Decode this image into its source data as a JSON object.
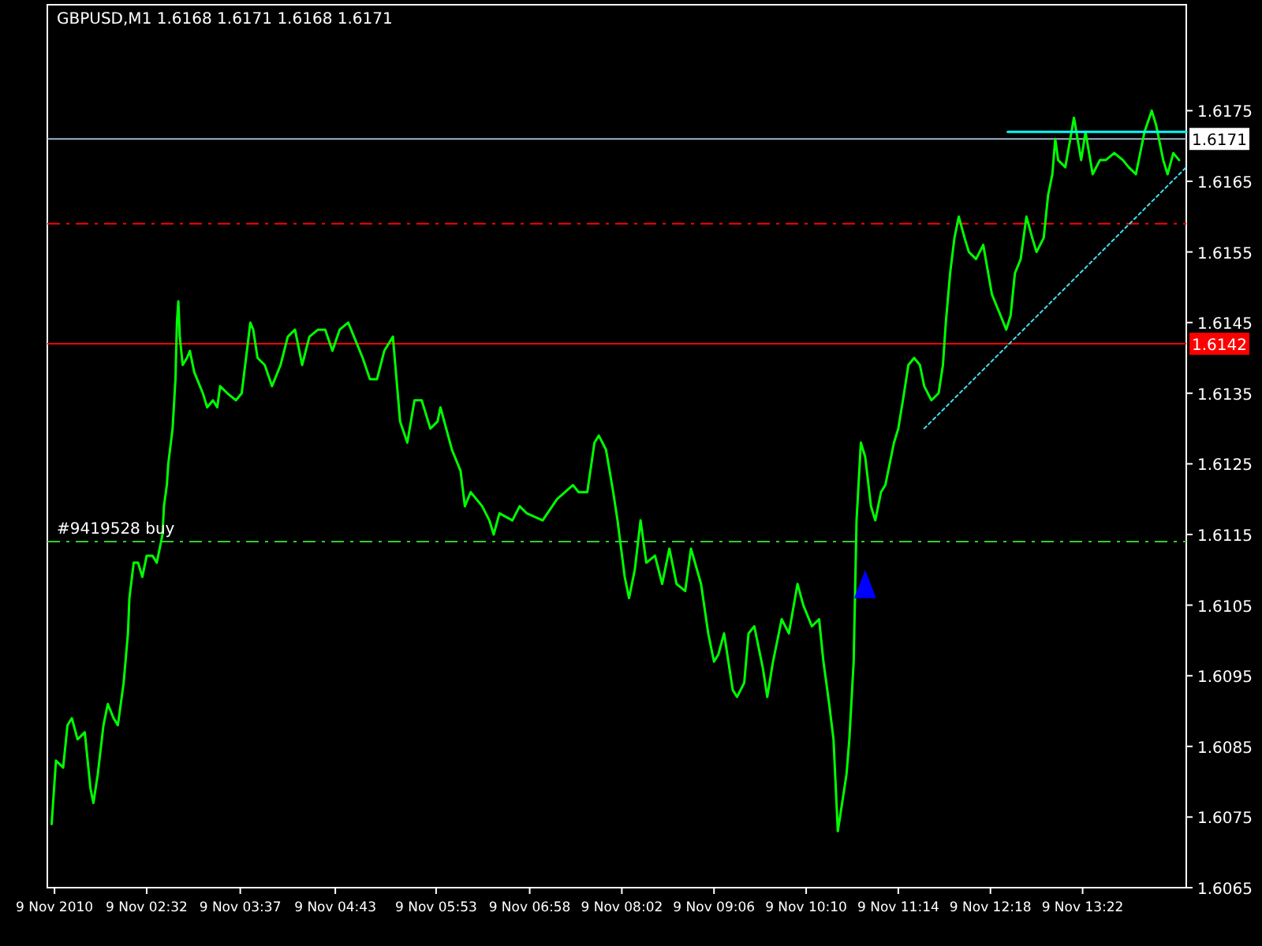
{
  "chart_data": {
    "type": "line",
    "title": "GBPUSD,M1  1.6168 1.6171 1.6168 1.6171",
    "xlim": [
      "2010-11-09T01:23",
      "2010-11-09T14:34"
    ],
    "ylim": [
      1.6065,
      1.619
    ],
    "xticks": [
      {
        "value": "2010-11-09T01:28",
        "label": "9 Nov 2010"
      },
      {
        "value": "2010-11-09T02:32",
        "label": "9 Nov 02:32"
      },
      {
        "value": "2010-11-09T03:37",
        "label": "9 Nov 03:37"
      },
      {
        "value": "2010-11-09T04:43",
        "label": "9 Nov 04:43"
      },
      {
        "value": "2010-11-09T05:53",
        "label": "9 Nov 05:53"
      },
      {
        "value": "2010-11-09T06:58",
        "label": "9 Nov 06:58"
      },
      {
        "value": "2010-11-09T08:02",
        "label": "9 Nov 08:02"
      },
      {
        "value": "2010-11-09T09:06",
        "label": "9 Nov 09:06"
      },
      {
        "value": "2010-11-09T10:10",
        "label": "9 Nov 10:10"
      },
      {
        "value": "2010-11-09T11:14",
        "label": "9 Nov 11:14"
      },
      {
        "value": "2010-11-09T12:18",
        "label": "9 Nov 12:18"
      },
      {
        "value": "2010-11-09T13:22",
        "label": "9 Nov 13:22"
      }
    ],
    "yticks": [
      1.6065,
      1.6075,
      1.6085,
      1.6095,
      1.6105,
      1.6115,
      1.6125,
      1.6135,
      1.6145,
      1.6155,
      1.6165,
      1.6175
    ],
    "grid": false,
    "series": [
      {
        "color": "#00ff00",
        "line_style": "solid",
        "x": [
          "2010-11-09T01:26",
          "2010-11-09T01:29",
          "2010-11-09T01:34",
          "2010-11-09T01:37",
          "2010-11-09T01:40",
          "2010-11-09T01:44",
          "2010-11-09T01:49",
          "2010-11-09T01:53",
          "2010-11-09T01:55",
          "2010-11-09T01:58",
          "2010-11-09T02:02",
          "2010-11-09T02:05",
          "2010-11-09T02:09",
          "2010-11-09T02:12",
          "2010-11-09T02:16",
          "2010-11-09T02:19",
          "2010-11-09T02:20",
          "2010-11-09T02:23",
          "2010-11-09T02:26",
          "2010-11-09T02:29",
          "2010-11-09T02:32",
          "2010-11-09T02:36",
          "2010-11-09T02:39",
          "2010-11-09T02:43",
          "2010-11-09T02:44",
          "2010-11-09T02:46",
          "2010-11-09T02:47",
          "2010-11-09T02:50",
          "2010-11-09T02:52",
          "2010-11-09T02:53",
          "2010-11-09T02:54",
          "2010-11-09T02:55",
          "2010-11-09T02:57",
          "2010-11-09T03:00",
          "2010-11-09T03:02",
          "2010-11-09T03:05",
          "2010-11-09T03:07",
          "2010-11-09T03:11",
          "2010-11-09T03:14",
          "2010-11-09T03:18",
          "2010-11-09T03:21",
          "2010-11-09T03:23",
          "2010-11-09T03:28",
          "2010-11-09T03:34",
          "2010-11-09T03:38",
          "2010-11-09T03:44",
          "2010-11-09T03:46",
          "2010-11-09T03:49",
          "2010-11-09T03:54",
          "2010-11-09T03:59",
          "2010-11-09T04:05",
          "2010-11-09T04:10",
          "2010-11-09T04:15",
          "2010-11-09T04:20",
          "2010-11-09T04:25",
          "2010-11-09T04:31",
          "2010-11-09T04:36",
          "2010-11-09T04:41",
          "2010-11-09T04:46",
          "2010-11-09T04:52",
          "2010-11-09T04:56",
          "2010-11-09T05:02",
          "2010-11-09T05:07",
          "2010-11-09T05:12",
          "2010-11-09T05:17",
          "2010-11-09T05:23",
          "2010-11-09T05:28",
          "2010-11-09T05:33",
          "2010-11-09T05:38",
          "2010-11-09T05:43",
          "2010-11-09T05:49",
          "2010-11-09T05:54",
          "2010-11-09T05:56",
          "2010-11-09T06:04",
          "2010-11-09T06:10",
          "2010-11-09T06:13",
          "2010-11-09T06:17",
          "2010-11-09T06:25",
          "2010-11-09T06:30",
          "2010-11-09T06:33",
          "2010-11-09T06:37",
          "2010-11-09T06:46",
          "2010-11-09T06:51",
          "2010-11-09T06:56",
          "2010-11-09T07:07",
          "2010-11-09T07:17",
          "2010-11-09T07:28",
          "2010-11-09T07:32",
          "2010-11-09T07:38",
          "2010-11-09T07:43",
          "2010-11-09T07:46",
          "2010-11-09T07:51",
          "2010-11-09T07:56",
          "2010-11-09T07:59",
          "2010-11-09T08:04",
          "2010-11-09T08:07",
          "2010-11-09T08:11",
          "2010-11-09T08:15",
          "2010-11-09T08:19",
          "2010-11-09T08:25",
          "2010-11-09T08:30",
          "2010-11-09T08:35",
          "2010-11-09T08:40",
          "2010-11-09T08:46",
          "2010-11-09T08:50",
          "2010-11-09T08:57",
          "2010-11-09T09:02",
          "2010-11-09T09:06",
          "2010-11-09T09:09",
          "2010-11-09T09:13",
          "2010-11-09T09:19",
          "2010-11-09T09:22",
          "2010-11-09T09:27",
          "2010-11-09T09:30",
          "2010-11-09T09:34",
          "2010-11-09T09:40",
          "2010-11-09T09:43",
          "2010-11-09T09:47",
          "2010-11-09T09:53",
          "2010-11-09T09:58",
          "2010-11-09T10:04",
          "2010-11-09T10:08",
          "2010-11-09T10:14",
          "2010-11-09T10:19",
          "2010-11-09T10:22",
          "2010-11-09T10:26",
          "2010-11-09T10:29",
          "2010-11-09T10:32",
          "2010-11-09T10:35",
          "2010-11-09T10:38",
          "2010-11-09T10:40",
          "2010-11-09T10:43",
          "2010-11-09T10:45",
          "2010-11-09T10:48",
          "2010-11-09T10:51",
          "2010-11-09T10:55",
          "2010-11-09T10:58",
          "2010-11-09T11:02",
          "2010-11-09T11:05",
          "2010-11-09T11:11",
          "2010-11-09T11:14",
          "2010-11-09T11:18",
          "2010-11-09T11:21",
          "2010-11-09T11:25",
          "2010-11-09T11:29",
          "2010-11-09T11:32",
          "2010-11-09T11:37",
          "2010-11-09T11:42",
          "2010-11-09T11:45",
          "2010-11-09T11:47",
          "2010-11-09T11:50",
          "2010-11-09T11:53",
          "2010-11-09T11:56",
          "2010-11-09T12:00",
          "2010-11-09T12:03",
          "2010-11-09T12:08",
          "2010-11-09T12:13",
          "2010-11-09T12:19",
          "2010-11-09T12:23",
          "2010-11-09T12:29",
          "2010-11-09T12:32",
          "2010-11-09T12:35",
          "2010-11-09T12:39",
          "2010-11-09T12:43",
          "2010-11-09T12:47",
          "2010-11-09T12:50",
          "2010-11-09T12:55",
          "2010-11-09T12:58",
          "2010-11-09T13:01",
          "2010-11-09T13:03",
          "2010-11-09T13:05",
          "2010-11-09T13:10",
          "2010-11-09T13:16",
          "2010-11-09T13:21",
          "2010-11-09T13:24",
          "2010-11-09T13:29",
          "2010-11-09T13:34",
          "2010-11-09T13:38",
          "2010-11-09T13:44",
          "2010-11-09T13:50",
          "2010-11-09T13:54",
          "2010-11-09T13:59",
          "2010-11-09T14:05",
          "2010-11-09T14:10",
          "2010-11-09T14:13",
          "2010-11-09T14:15",
          "2010-11-09T14:18",
          "2010-11-09T14:21",
          "2010-11-09T14:25",
          "2010-11-09T14:29"
        ],
        "values": [
          1.6074,
          1.6083,
          1.6082,
          1.6088,
          1.6089,
          1.6086,
          1.6087,
          1.6079,
          1.6077,
          1.6081,
          1.6088,
          1.6091,
          1.6089,
          1.6088,
          1.6094,
          1.6101,
          1.6106,
          1.6111,
          1.6111,
          1.6109,
          1.6112,
          1.6112,
          1.6111,
          1.6115,
          1.6119,
          1.6122,
          1.6125,
          1.613,
          1.6137,
          1.6145,
          1.6148,
          1.6143,
          1.6139,
          1.614,
          1.6141,
          1.6138,
          1.6137,
          1.6135,
          1.6133,
          1.6134,
          1.6133,
          1.6136,
          1.6135,
          1.6134,
          1.6135,
          1.6145,
          1.6144,
          1.614,
          1.6139,
          1.6136,
          1.6139,
          1.6143,
          1.6144,
          1.6139,
          1.6143,
          1.6144,
          1.6144,
          1.6141,
          1.6144,
          1.6145,
          1.6143,
          1.614,
          1.6137,
          1.6137,
          1.6141,
          1.6143,
          1.6131,
          1.6128,
          1.6134,
          1.6134,
          1.613,
          1.6131,
          1.6133,
          1.6127,
          1.6124,
          1.6119,
          1.6121,
          1.6119,
          1.6117,
          1.6115,
          1.6118,
          1.6117,
          1.6119,
          1.6118,
          1.6117,
          1.612,
          1.6122,
          1.6121,
          1.6121,
          1.6128,
          1.6129,
          1.6127,
          1.6121,
          1.6117,
          1.6109,
          1.6106,
          1.611,
          1.6117,
          1.6111,
          1.6112,
          1.6108,
          1.6113,
          1.6108,
          1.6107,
          1.6113,
          1.6108,
          1.6101,
          1.6097,
          1.6098,
          1.6101,
          1.6093,
          1.6092,
          1.6094,
          1.6101,
          1.6102,
          1.6096,
          1.6092,
          1.6097,
          1.6103,
          1.6101,
          1.6108,
          1.6105,
          1.6102,
          1.6103,
          1.6097,
          1.6091,
          1.6086,
          1.6073,
          1.6077,
          1.6081,
          1.6086,
          1.6097,
          1.6117,
          1.6128,
          1.6126,
          1.6119,
          1.6117,
          1.6121,
          1.6122,
          1.6128,
          1.613,
          1.6135,
          1.6139,
          1.614,
          1.6139,
          1.6136,
          1.6134,
          1.6135,
          1.6139,
          1.6145,
          1.6152,
          1.6157,
          1.616,
          1.6157,
          1.6155,
          1.6154,
          1.6156,
          1.6149,
          1.6147,
          1.6144,
          1.6146,
          1.6152,
          1.6154,
          1.616,
          1.6157,
          1.6155,
          1.6157,
          1.6163,
          1.6166,
          1.6171,
          1.6168,
          1.6167,
          1.6174,
          1.6168,
          1.6172,
          1.6166,
          1.6168,
          1.6168,
          1.6169,
          1.6168,
          1.6167,
          1.6166,
          1.6172,
          1.6175,
          1.6173,
          1.6171,
          1.6168,
          1.6166,
          1.6169,
          1.6168
        ]
      },
      {
        "color": "#40e0f0",
        "line_style": "dotted",
        "x": [
          "2010-11-09T11:32",
          "2010-11-09T14:34"
        ],
        "values": [
          1.613,
          1.6167
        ]
      },
      {
        "color": "#00ffff",
        "line_style": "solid",
        "x": [
          "2010-11-09T12:30",
          "2010-11-09T14:34"
        ],
        "values": [
          1.6172,
          1.6172
        ]
      }
    ],
    "ref_lines": [
      {
        "axis": "y",
        "value": 1.6171,
        "label": "1.6171",
        "color": "#a0b4c8",
        "line_style": "solid"
      },
      {
        "axis": "y",
        "value": 1.6142,
        "label": "1.6142",
        "color": "#ff0000",
        "line_style": "solid"
      },
      {
        "axis": "y",
        "value": 1.6159,
        "color": "#ff0000",
        "line_style": "dashed"
      },
      {
        "axis": "y",
        "value": 1.6114,
        "label": "#9419528 buy",
        "color": "#32cd32",
        "line_style": "dashed"
      }
    ]
  }
}
